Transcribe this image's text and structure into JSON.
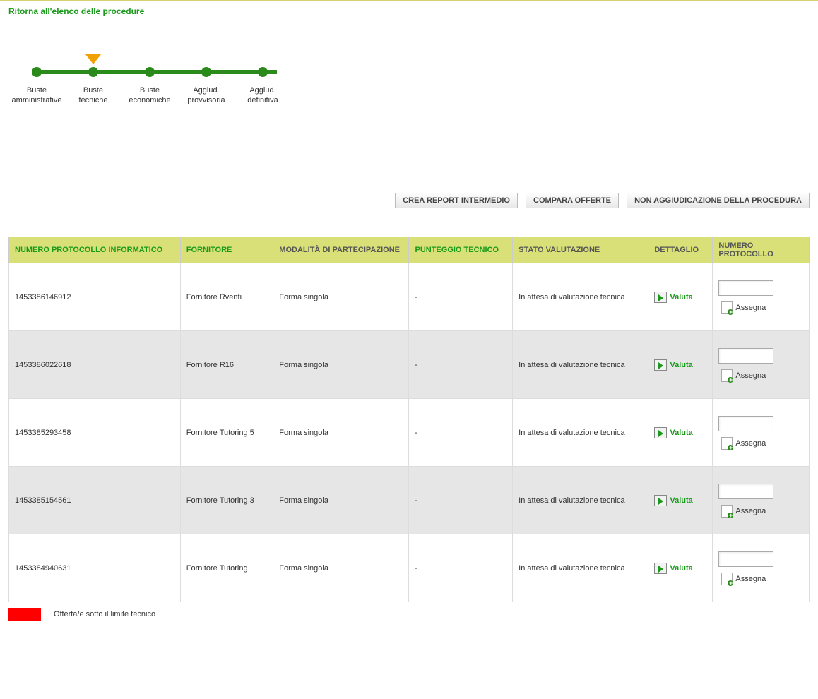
{
  "colors": {
    "accent_green": "#1a9a1a",
    "track_green": "#2a8a1a",
    "arrow_orange": "#f0a000",
    "header_bg": "#d8e077",
    "row_alt": "#e6e6e6",
    "legend_red": "#ff0000"
  },
  "back_link": "Ritorna all'elenco delle procedure",
  "stepper": [
    {
      "label_l1": "Buste",
      "label_l2": "amministrative",
      "current": false
    },
    {
      "label_l1": "Buste",
      "label_l2": "tecniche",
      "current": true
    },
    {
      "label_l1": "Buste",
      "label_l2": "economiche",
      "current": false
    },
    {
      "label_l1": "Aggiud.",
      "label_l2": "provvisoria",
      "current": false
    },
    {
      "label_l1": "Aggiud.",
      "label_l2": "definitiva",
      "current": false
    }
  ],
  "actions": {
    "crea_report": "CREA REPORT INTERMEDIO",
    "compara": "COMPARA OFFERTE",
    "non_aggiudicazione": "NON AGGIUDICAZIONE DELLA PROCEDURA"
  },
  "table": {
    "headers": {
      "protocollo": "NUMERO PROTOCOLLO INFORMATICO",
      "fornitore": "FORNITORE",
      "modalita": "MODALITÀ DI PARTECIPAZIONE",
      "punteggio": "PUNTEGGIO TECNICO",
      "stato": "STATO VALUTAZIONE",
      "dettaglio": "DETTAGLIO",
      "numero_protocollo": "NUMERO PROTOCOLLO"
    },
    "valuta_label": "Valuta",
    "assegna_label": "Assegna",
    "rows": [
      {
        "protocollo": "1453386146912",
        "fornitore": "Fornitore Rventi",
        "modalita": "Forma singola",
        "punteggio": "-",
        "stato": "In attesa di valutazione tecnica"
      },
      {
        "protocollo": "1453386022618",
        "fornitore": "Fornitore R16",
        "modalita": "Forma singola",
        "punteggio": "-",
        "stato": "In attesa di valutazione tecnica"
      },
      {
        "protocollo": "1453385293458",
        "fornitore": "Fornitore Tutoring 5",
        "modalita": "Forma singola",
        "punteggio": "-",
        "stato": "In attesa di valutazione tecnica"
      },
      {
        "protocollo": "1453385154561",
        "fornitore": "Fornitore Tutoring 3",
        "modalita": "Forma singola",
        "punteggio": "-",
        "stato": "In attesa di valutazione tecnica"
      },
      {
        "protocollo": "1453384940631",
        "fornitore": "Fornitore Tutoring",
        "modalita": "Forma singola",
        "punteggio": "-",
        "stato": "In attesa di valutazione tecnica"
      }
    ]
  },
  "legend": {
    "text": "Offerta/e sotto il limite tecnico"
  }
}
